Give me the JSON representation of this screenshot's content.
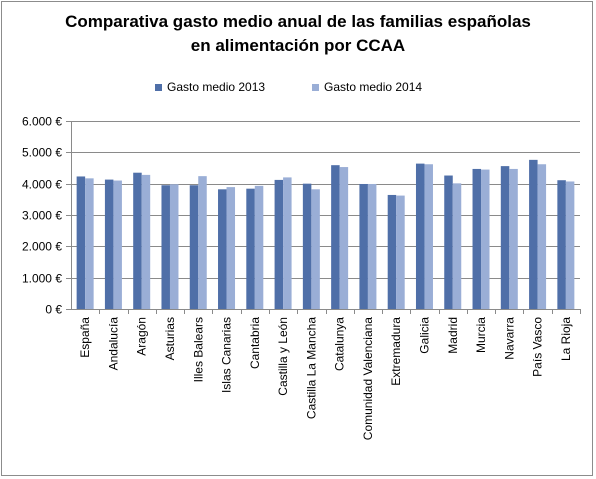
{
  "chart_data": {
    "type": "bar",
    "title_lines": [
      "Comparativa gasto medio anual de las familias españolas",
      "en alimentación por CCAA"
    ],
    "categories": [
      "España",
      "Andalucía",
      "Aragón",
      "Asturias",
      "Illes Balears",
      "Islas Canarias",
      "Cantabria",
      "Castilla y León",
      "Castilla La Mancha",
      "Catalunya",
      "Comunidad Valenciana",
      "Extremadura",
      "Galicia",
      "Madrid",
      "Murcia",
      "Navarra",
      "País Vasco",
      "La Rioja"
    ],
    "series": [
      {
        "name": "Gasto medio 2013",
        "color": "#4f6fa8",
        "values": [
          4230,
          4130,
          4350,
          3950,
          3950,
          3820,
          3840,
          4120,
          4000,
          4590,
          3990,
          3640,
          4640,
          4260,
          4470,
          4560,
          4760,
          4110
        ]
      },
      {
        "name": "Gasto medio 2014",
        "color": "#9aaed6",
        "values": [
          4170,
          4100,
          4280,
          3980,
          4240,
          3890,
          3930,
          4200,
          3820,
          4530,
          3990,
          3620,
          4620,
          4010,
          4450,
          4470,
          4620,
          4070
        ]
      }
    ],
    "y_ticks": [
      {
        "value": 0,
        "label": "0 €"
      },
      {
        "value": 1000,
        "label": "1.000 €"
      },
      {
        "value": 2000,
        "label": "2.000 €"
      },
      {
        "value": 3000,
        "label": "3.000 €"
      },
      {
        "value": 4000,
        "label": "4.000 €"
      },
      {
        "value": 5000,
        "label": "5.000 €"
      },
      {
        "value": 6000,
        "label": "6.000 €"
      }
    ],
    "ylim": [
      0,
      6000
    ],
    "grid": true,
    "legend_position": "top"
  }
}
